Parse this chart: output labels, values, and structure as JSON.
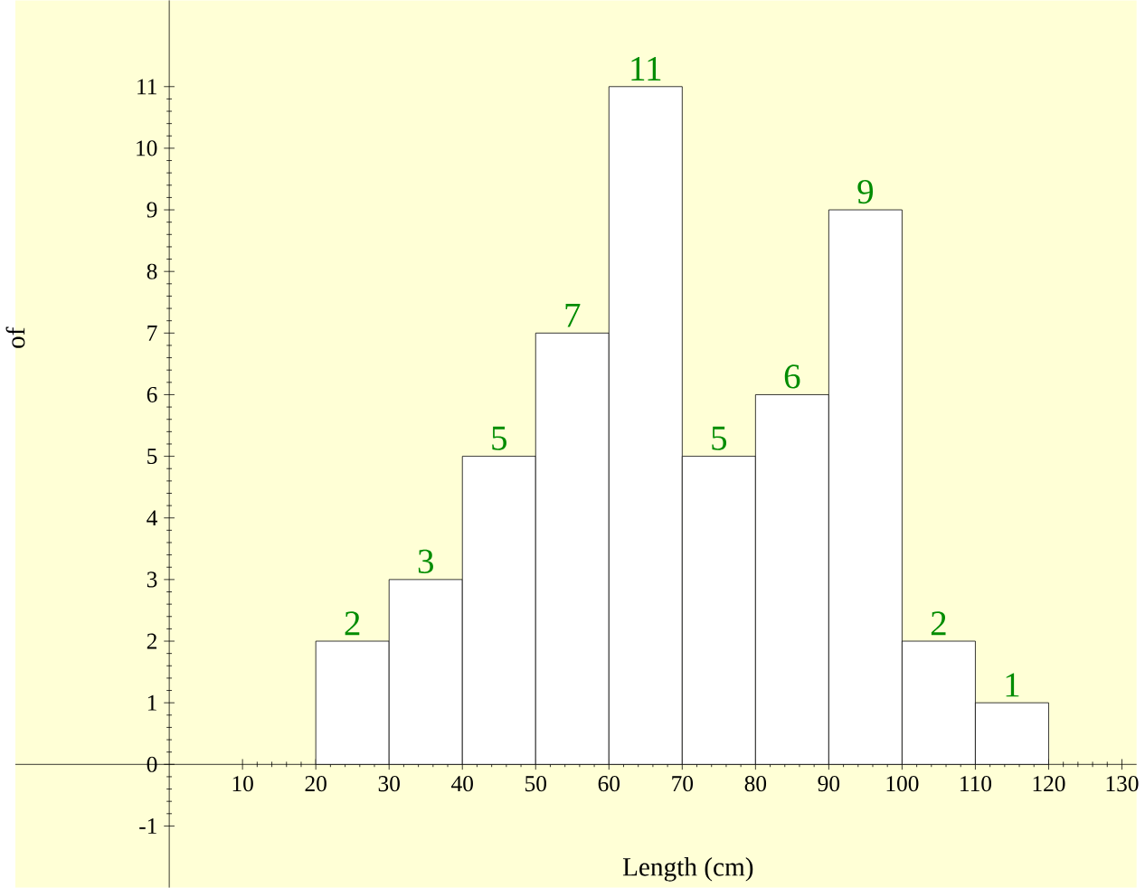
{
  "chart_data": {
    "type": "histogram",
    "xlabel": "Length (cm)",
    "ylabel": "of",
    "bins": [
      20,
      30,
      40,
      50,
      60,
      70,
      80,
      90,
      100,
      110,
      120
    ],
    "values": [
      2,
      3,
      5,
      7,
      11,
      5,
      6,
      9,
      2,
      1
    ],
    "color": "#ffffff",
    "data_labels": true,
    "xlim": [
      -21,
      132
    ],
    "ylim": [
      -2,
      12.4
    ],
    "xticks": [
      10,
      20,
      30,
      40,
      50,
      60,
      70,
      80,
      90,
      100,
      110,
      120,
      130
    ],
    "yticks": [
      -1,
      0,
      1,
      2,
      3,
      4,
      5,
      6,
      7,
      8,
      9,
      10,
      11
    ],
    "grid": false
  }
}
